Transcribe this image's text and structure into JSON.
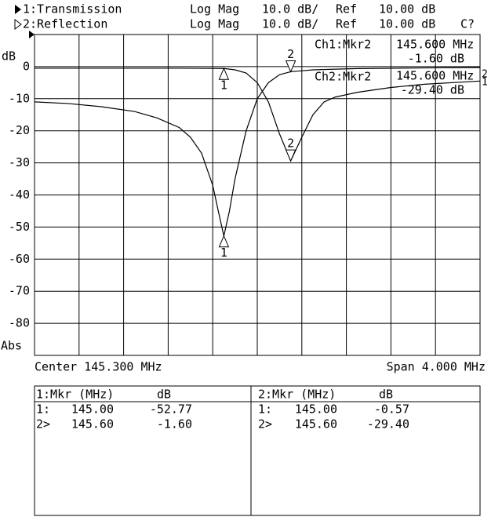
{
  "header": {
    "channels": [
      {
        "name": "1:Transmission",
        "format": "Log Mag",
        "scale": "10.0 dB/",
        "ref_label": "Ref",
        "ref": "10.00 dB"
      },
      {
        "name": "2:Reflection",
        "format": "Log Mag",
        "scale": "10.0 dB/",
        "ref_label": "Ref",
        "ref": "10.00 dB",
        "status": "C?"
      }
    ]
  },
  "chart_data": {
    "type": "line",
    "y_label": "dB",
    "y_label_bottom": "Abs",
    "xlim": [
      143.3,
      147.3
    ],
    "xticks": [
      143.3,
      143.7,
      144.1,
      144.5,
      144.9,
      145.3,
      145.7,
      146.1,
      146.5,
      146.9,
      147.3
    ],
    "ylim": [
      -90,
      10
    ],
    "yticks": [
      0,
      -10,
      -20,
      -30,
      -40,
      -50,
      -60,
      -70,
      -80
    ],
    "grid": true,
    "series": [
      {
        "name": "Transmission",
        "color": "#000000",
        "end_label": "1",
        "x": [
          143.3,
          143.6,
          143.9,
          144.2,
          144.4,
          144.6,
          144.7,
          144.8,
          144.9,
          144.95,
          145.0,
          145.05,
          145.1,
          145.2,
          145.3,
          145.4,
          145.5,
          145.6,
          145.8,
          146.2,
          146.8,
          147.3
        ],
        "values": [
          -11,
          -11.5,
          -12.5,
          -14,
          -16,
          -19,
          -22,
          -27,
          -37,
          -45,
          -52.77,
          -45,
          -35,
          -20,
          -10,
          -5,
          -2.5,
          -1.6,
          -1,
          -0.6,
          -0.4,
          -0.3
        ],
        "markers": {
          "labels": [
            "1",
            "2"
          ],
          "x": [
            145.0,
            145.6
          ],
          "values": [
            -52.77,
            -1.6
          ]
        }
      },
      {
        "name": "Reflection",
        "color": "#000000",
        "end_label": "2",
        "x": [
          143.3,
          144.0,
          144.6,
          145.0,
          145.1,
          145.2,
          145.3,
          145.4,
          145.5,
          145.6,
          145.7,
          145.8,
          145.9,
          146.0,
          146.2,
          146.5,
          146.8,
          147.3
        ],
        "values": [
          -0.5,
          -0.5,
          -0.5,
          -0.57,
          -1,
          -2,
          -5,
          -11,
          -21,
          -29.4,
          -22,
          -15,
          -11,
          -9.5,
          -8,
          -6.5,
          -5.5,
          -4.5
        ],
        "markers": {
          "labels": [
            "1",
            "2"
          ],
          "x": [
            145.0,
            145.6
          ],
          "values": [
            -0.57,
            -29.4
          ]
        }
      }
    ],
    "marker_readouts": [
      {
        "title": "Ch1:Mkr2",
        "x": "145.600 MHz",
        "y": "-1.60 dB"
      },
      {
        "title": "Ch2:Mkr2",
        "x": "145.600 MHz",
        "y": "-29.40 dB"
      }
    ],
    "center": "Center 145.300 MHz",
    "span": "Span 4.000 MHz"
  },
  "marker_tables": [
    {
      "header": [
        "1:Mkr (MHz)",
        "dB"
      ],
      "rows": [
        [
          "1:",
          "145.00",
          "-52.77"
        ],
        [
          "2>",
          "145.60",
          "-1.60"
        ]
      ]
    },
    {
      "header": [
        "2:Mkr (MHz)",
        "dB"
      ],
      "rows": [
        [
          "1:",
          "145.00",
          "-0.57"
        ],
        [
          "2>",
          "145.60",
          "-29.40"
        ]
      ]
    }
  ]
}
